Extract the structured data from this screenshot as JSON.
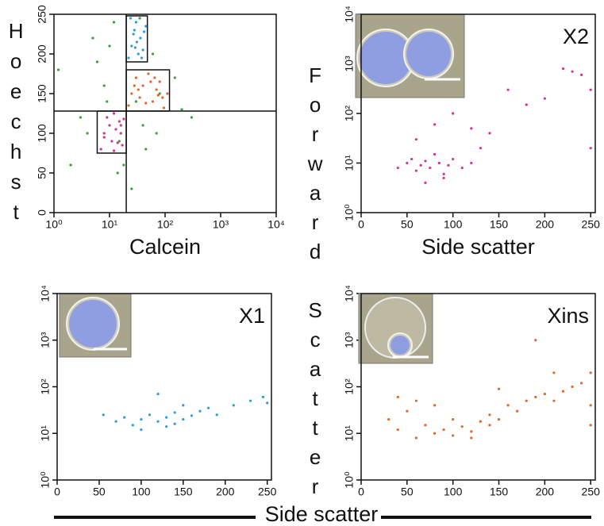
{
  "figure": {
    "ylabel": "Forward Scatter",
    "xlabel": "Side scatter"
  },
  "chart_data": [
    {
      "type": "scatter",
      "xscale": "log",
      "yscale": "linear",
      "xlabel": "Calcein",
      "ylabel": "Hoechst",
      "xlim": [
        1,
        10000
      ],
      "ylim": [
        0,
        250
      ],
      "xticks": [
        {
          "value": 1,
          "label": "10⁰"
        },
        {
          "value": 10,
          "label": "10¹"
        },
        {
          "value": 100,
          "label": "10²"
        },
        {
          "value": 1000,
          "label": "10³"
        },
        {
          "value": 10000,
          "label": "10⁴"
        }
      ],
      "yticks": [
        0,
        50,
        100,
        150,
        200,
        250
      ],
      "quadrant": {
        "x": 20,
        "y": 128
      },
      "gates": [
        {
          "color": "#d6338f",
          "x": [
            6,
            20
          ],
          "y": [
            75,
            128
          ]
        },
        {
          "color": "#2a9fd8",
          "x": [
            20,
            48
          ],
          "y": [
            190,
            248
          ]
        },
        {
          "color": "#e0692a",
          "x": [
            20,
            120
          ],
          "y": [
            128,
            180
          ]
        }
      ],
      "series": [
        {
          "color": "#3aa03a",
          "x": [
            1.2,
            2,
            3,
            5,
            4,
            8,
            12,
            15,
            25,
            30,
            40,
            60,
            80,
            150,
            200,
            10,
            6,
            18,
            35,
            70,
            300,
            9,
            14,
            45
          ],
          "values": [
            180,
            60,
            120,
            220,
            100,
            160,
            240,
            90,
            30,
            140,
            110,
            200,
            150,
            170,
            130,
            210,
            190,
            60,
            245,
            100,
            120,
            140,
            50,
            80
          ]
        },
        {
          "color": "#d6338f",
          "x": [
            7,
            8,
            10,
            12,
            14,
            16,
            18,
            9,
            11,
            13,
            15,
            17,
            8,
            12,
            16
          ],
          "values": [
            80,
            95,
            110,
            125,
            88,
            100,
            118,
            120,
            90,
            105,
            115,
            85,
            100,
            78,
            110
          ]
        },
        {
          "color": "#2a9fd8",
          "x": [
            22,
            25,
            28,
            30,
            33,
            36,
            40,
            45,
            24,
            27,
            31,
            38,
            42,
            29
          ],
          "values": [
            195,
            210,
            230,
            240,
            200,
            220,
            205,
            235,
            245,
            225,
            215,
            195,
            228,
            208
          ]
        },
        {
          "color": "#e0692a",
          "x": [
            22,
            25,
            30,
            35,
            40,
            50,
            60,
            70,
            80,
            95,
            110,
            28,
            45,
            65,
            90,
            33,
            55,
            75
          ],
          "values": [
            135,
            150,
            170,
            145,
            160,
            175,
            140,
            155,
            165,
            132,
            150,
            160,
            138,
            170,
            145,
            155,
            165,
            148
          ]
        }
      ]
    },
    {
      "type": "scatter",
      "xscale": "linear",
      "yscale": "log",
      "annotation": "X2",
      "xlabel": "Side scatter",
      "xlim": [
        0,
        255
      ],
      "ylim": [
        1,
        10000
      ],
      "xticks": [
        0,
        50,
        100,
        150,
        200,
        250
      ],
      "yticks": [
        {
          "value": 1,
          "label": "10⁰"
        },
        {
          "value": 10,
          "label": "10¹"
        },
        {
          "value": 100,
          "label": "10²"
        },
        {
          "value": 1000,
          "label": "10³"
        },
        {
          "value": 10000,
          "label": "10⁴"
        }
      ],
      "series": [
        {
          "color": "#d6338f",
          "x": [
            40,
            50,
            55,
            60,
            65,
            70,
            75,
            80,
            85,
            90,
            95,
            100,
            110,
            120,
            130,
            60,
            80,
            100,
            140,
            160,
            180,
            200,
            220,
            240,
            250,
            250,
            90,
            120,
            70,
            230
          ],
          "values": [
            8,
            10,
            12,
            7,
            9,
            11,
            8,
            15,
            10,
            6,
            9,
            12,
            8,
            10,
            20,
            30,
            60,
            100,
            40,
            300,
            150,
            200,
            800,
            600,
            300,
            20,
            5,
            50,
            4,
            700
          ]
        }
      ]
    },
    {
      "type": "scatter",
      "xscale": "linear",
      "yscale": "log",
      "annotation": "X1",
      "xlim": [
        0,
        255
      ],
      "ylim": [
        1,
        10000
      ],
      "xticks": [
        0,
        50,
        100,
        150,
        200,
        250
      ],
      "yticks": [
        {
          "value": 1,
          "label": "10⁰"
        },
        {
          "value": 10,
          "label": "10¹"
        },
        {
          "value": 100,
          "label": "10²"
        },
        {
          "value": 1000,
          "label": "10³"
        },
        {
          "value": 10000,
          "label": "10⁴"
        }
      ],
      "series": [
        {
          "color": "#2a9fd8",
          "x": [
            55,
            70,
            80,
            90,
            100,
            110,
            120,
            130,
            140,
            150,
            160,
            170,
            180,
            190,
            100,
            130,
            150,
            210,
            230,
            245,
            250,
            120,
            140
          ],
          "values": [
            25,
            18,
            22,
            15,
            20,
            25,
            18,
            22,
            28,
            20,
            24,
            30,
            35,
            25,
            12,
            14,
            40,
            40,
            50,
            60,
            45,
            70,
            16
          ]
        }
      ]
    },
    {
      "type": "scatter",
      "xscale": "linear",
      "yscale": "log",
      "annotation": "Xins",
      "xlim": [
        0,
        255
      ],
      "ylim": [
        1,
        10000
      ],
      "xticks": [
        0,
        50,
        100,
        150,
        200,
        250
      ],
      "yticks": [
        {
          "value": 1,
          "label": "10⁰"
        },
        {
          "value": 10,
          "label": "10¹"
        },
        {
          "value": 100,
          "label": "10²"
        },
        {
          "value": 1000,
          "label": "10³"
        },
        {
          "value": 10000,
          "label": "10⁴"
        }
      ],
      "series": [
        {
          "color": "#e0692a",
          "x": [
            30,
            40,
            50,
            60,
            70,
            80,
            90,
            100,
            110,
            120,
            130,
            140,
            150,
            160,
            170,
            180,
            190,
            200,
            210,
            220,
            230,
            240,
            250,
            250,
            250,
            100,
            120,
            80,
            60,
            150,
            190,
            210,
            40,
            140
          ],
          "values": [
            20,
            12,
            30,
            8,
            15,
            10,
            12,
            9,
            14,
            11,
            18,
            25,
            20,
            40,
            30,
            50,
            60,
            70,
            50,
            80,
            100,
            120,
            200,
            40,
            15,
            20,
            8,
            40,
            50,
            90,
            1000,
            200,
            60,
            15
          ]
        }
      ]
    }
  ]
}
